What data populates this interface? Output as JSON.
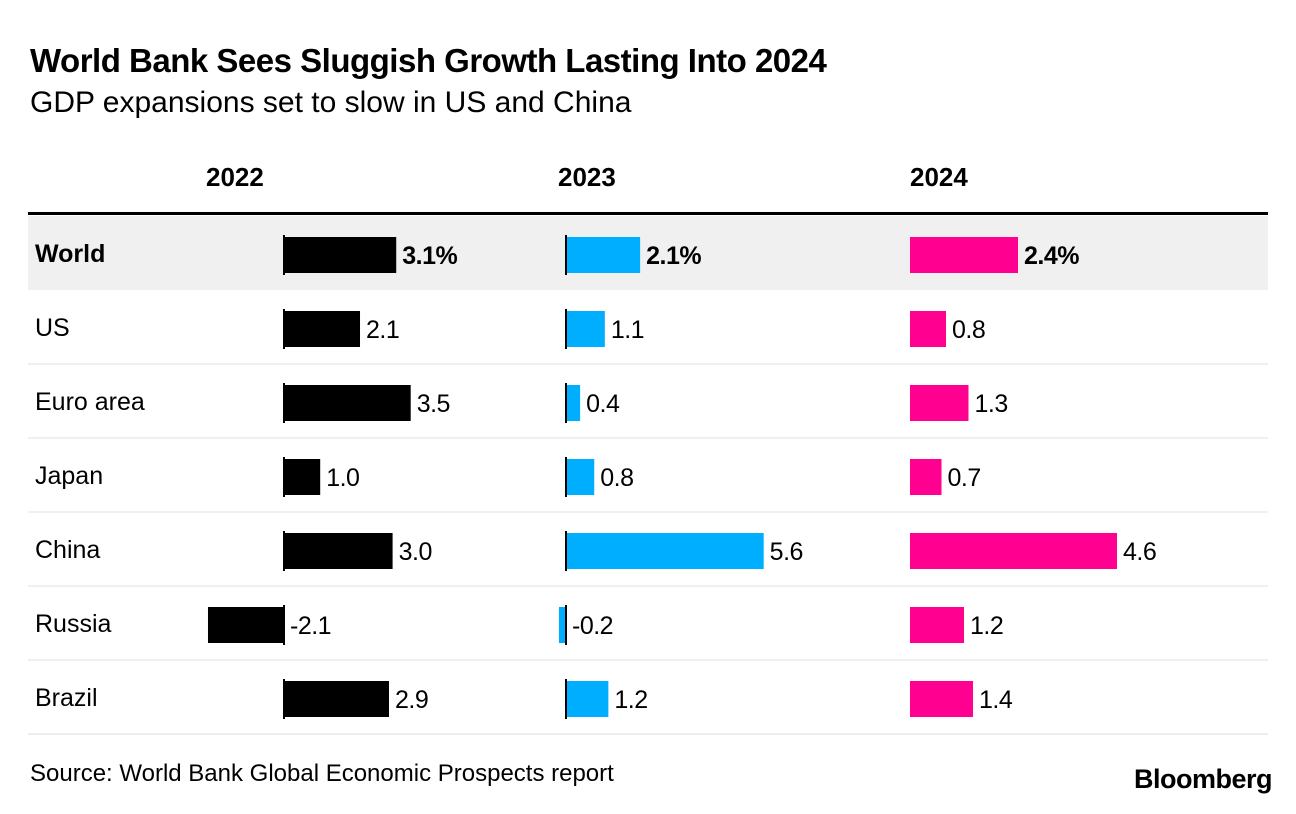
{
  "title": "World Bank Sees Sluggish Growth Lasting Into 2024",
  "subtitle": "GDP expansions set to slow in US and China",
  "source": "Source: World Bank Global Economic Prospects report",
  "logo": "Bloomberg",
  "chart_data": {
    "type": "bar",
    "orientation": "horizontal",
    "categories": [
      "World",
      "US",
      "Euro area",
      "Japan",
      "China",
      "Russia",
      "Brazil"
    ],
    "series": [
      {
        "name": "2022",
        "color": "#000000",
        "values": [
          3.1,
          2.1,
          3.5,
          1.0,
          3.0,
          -2.1,
          2.9
        ],
        "labels": [
          "3.1%",
          "2.1",
          "3.5",
          "1.0",
          "3.0",
          "-2.1",
          "2.9"
        ]
      },
      {
        "name": "2023",
        "color": "#00aeff",
        "values": [
          2.1,
          1.1,
          0.4,
          0.8,
          5.6,
          -0.2,
          1.2
        ],
        "labels": [
          "2.1%",
          "1.1",
          "0.4",
          "0.8",
          "5.6",
          "-0.2",
          "1.2"
        ]
      },
      {
        "name": "2024",
        "color": "#ff0090",
        "values": [
          2.4,
          0.8,
          1.3,
          0.7,
          4.6,
          1.2,
          1.4
        ],
        "labels": [
          "2.4%",
          "0.8",
          "1.3",
          "0.7",
          "4.6",
          "1.2",
          "1.4"
        ]
      }
    ],
    "highlighted_category": "World",
    "unit": "%"
  }
}
